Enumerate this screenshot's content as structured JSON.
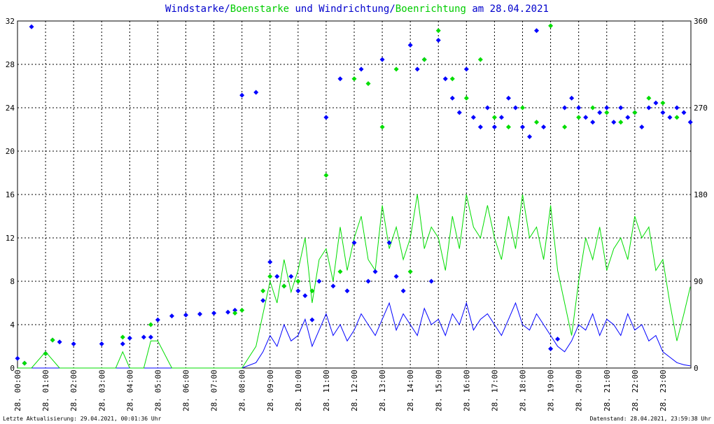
{
  "title": {
    "part1": "Windstarke/",
    "part2": "Boenstarke",
    "part3": " und Windrichtung/",
    "part4": "Boenrichtung",
    "part5": " am 28.04.2021"
  },
  "footer": {
    "left": "Letzte Aktualisierung: 29.04.2021, 00:01:36 Uhr",
    "right": "Datenstand: 28.04.2021, 23:59:38 Uhr"
  },
  "colors": {
    "wind": "#0000ff",
    "gust": "#00dd00",
    "grid": "#000000",
    "background": "#ffffff"
  },
  "chart_data": {
    "type": "line",
    "grid": true,
    "y_left": {
      "min": 0,
      "max": 32,
      "ticks": [
        "0",
        "4",
        "8",
        "12",
        "16",
        "20",
        "24",
        "28",
        "32"
      ]
    },
    "y_right": {
      "min": 0,
      "max": 360,
      "ticks": [
        "0",
        "90",
        "180",
        "270",
        "360"
      ]
    },
    "x_labels": [
      "28. 00:00",
      "28. 01:00",
      "28. 02:00",
      "28. 03:00",
      "28. 04:00",
      "28. 05:00",
      "28. 06:00",
      "28. 07:00",
      "28. 08:00",
      "28. 09:00",
      "28. 10:00",
      "28. 11:00",
      "28. 12:00",
      "28. 13:00",
      "28. 14:00",
      "28. 15:00",
      "28. 16:00",
      "28. 17:00",
      "28. 18:00",
      "28. 19:00",
      "28. 20:00",
      "28. 21:00",
      "28. 22:00",
      "28. 23:00"
    ],
    "series": [
      {
        "name": "Windstarke",
        "hours": [
          0,
          0.5,
          1,
          1.25,
          1.5,
          2,
          3,
          3.75,
          4,
          4.5,
          4.75,
          5,
          5.5,
          6,
          6.5,
          7,
          7.5,
          7.75,
          8,
          8.5,
          8.75,
          9,
          9.25,
          9.5,
          9.75,
          10,
          10.25,
          10.5,
          10.75,
          11,
          11.25,
          11.5,
          11.75,
          12,
          12.25,
          12.5,
          12.75,
          13,
          13.25,
          13.5,
          13.75,
          14,
          14.25,
          14.5,
          14.75,
          15,
          15.25,
          15.5,
          15.75,
          16,
          16.25,
          16.5,
          16.75,
          17,
          17.25,
          17.5,
          17.75,
          18,
          18.25,
          18.5,
          18.75,
          19,
          19.25,
          19.5,
          19.75,
          20,
          20.25,
          20.5,
          20.75,
          21,
          21.25,
          21.5,
          21.75,
          22,
          22.25,
          22.5,
          22.75,
          23,
          23.25,
          23.5,
          23.75,
          23.98
        ],
        "values": [
          0,
          0,
          0,
          0,
          0,
          0,
          0,
          0,
          0,
          0,
          0,
          0,
          0,
          0,
          0,
          0,
          0,
          0,
          0,
          0.5,
          1.5,
          3,
          2,
          4,
          2.5,
          3,
          4.5,
          2,
          3.5,
          5,
          3,
          4,
          2.5,
          3.5,
          5,
          4,
          3,
          4.5,
          6,
          3.5,
          5,
          4,
          3,
          5.5,
          4,
          4.5,
          3,
          5,
          4,
          6,
          3.5,
          4.5,
          5,
          4,
          3,
          4.5,
          6,
          4,
          3.5,
          5,
          4,
          3,
          2,
          1.5,
          2.5,
          4,
          3.5,
          5,
          3,
          4.5,
          4,
          3,
          5,
          3.5,
          4,
          2.5,
          3,
          1.5,
          1,
          0.5,
          0.3,
          0.2
        ]
      },
      {
        "name": "Boenstarke",
        "hours": [
          0,
          0.5,
          1,
          1.5,
          2,
          3,
          3.5,
          3.75,
          4,
          4.5,
          4.75,
          5,
          5.5,
          6,
          6.5,
          7,
          7.5,
          8,
          8.5,
          8.75,
          9,
          9.25,
          9.5,
          9.75,
          10,
          10.25,
          10.5,
          10.75,
          11,
          11.25,
          11.5,
          11.75,
          12,
          12.25,
          12.5,
          12.75,
          13,
          13.25,
          13.5,
          13.75,
          14,
          14.25,
          14.5,
          14.75,
          15,
          15.25,
          15.5,
          15.75,
          16,
          16.25,
          16.5,
          16.75,
          17,
          17.25,
          17.5,
          17.75,
          18,
          18.25,
          18.5,
          18.75,
          19,
          19.25,
          19.5,
          19.75,
          20,
          20.25,
          20.5,
          20.75,
          21,
          21.25,
          21.5,
          21.75,
          22,
          22.25,
          22.5,
          22.75,
          23,
          23.25,
          23.5,
          23.75,
          23.98
        ],
        "values": [
          0,
          0,
          1.5,
          0,
          0,
          0,
          0,
          1.5,
          0,
          0,
          2.5,
          2.5,
          0,
          0,
          0,
          0,
          0,
          0,
          2,
          5,
          8,
          6,
          10,
          7,
          9,
          12,
          6,
          10,
          11,
          8,
          13,
          9,
          12,
          14,
          10,
          9,
          15,
          11,
          13,
          10,
          12,
          16,
          11,
          13,
          12,
          9,
          14,
          11,
          16,
          13,
          12,
          15,
          12,
          10,
          14,
          11,
          16,
          12,
          13,
          10,
          15,
          9,
          6,
          3,
          8,
          12,
          10,
          13,
          9,
          11,
          12,
          10,
          14,
          12,
          13,
          9,
          10,
          6,
          2.5,
          5,
          7.5
        ]
      },
      {
        "name": "Windrichtung",
        "hours": [
          0,
          0.25,
          0.5,
          1,
          1.25,
          1.5,
          2,
          3,
          3.75,
          4,
          4.5,
          4.75,
          5,
          5.5,
          6,
          6.5,
          7,
          7.5,
          7.75,
          8,
          8.5,
          8.75,
          9,
          9.25,
          9.5,
          9.75,
          10,
          10.25,
          10.5,
          10.75,
          11,
          11.25,
          11.5,
          11.75,
          12,
          12.25,
          12.5,
          12.75,
          13,
          13.25,
          13.5,
          13.75,
          14,
          14.25,
          14.5,
          14.75,
          15,
          15.25,
          15.5,
          15.75,
          16,
          16.25,
          16.5,
          16.75,
          17,
          17.25,
          17.5,
          17.75,
          18,
          18.25,
          18.5,
          18.75,
          19,
          19.25,
          19.5,
          19.75,
          20,
          20.25,
          20.5,
          20.75,
          21,
          21.25,
          21.5,
          21.75,
          22,
          22.25,
          22.5,
          22.75,
          23,
          23.25,
          23.5,
          23.75,
          23.98
        ],
        "values": [
          10,
          5,
          354,
          15,
          29,
          27,
          25,
          25,
          25,
          31,
          32,
          32,
          50,
          54,
          55,
          56,
          57,
          58,
          60,
          283,
          286,
          70,
          110,
          95,
          85,
          95,
          80,
          75,
          50,
          90,
          260,
          85,
          300,
          80,
          130,
          310,
          90,
          100,
          320,
          130,
          95,
          80,
          335,
          310,
          320,
          90,
          340,
          300,
          280,
          265,
          310,
          260,
          250,
          270,
          250,
          260,
          280,
          270,
          250,
          240,
          350,
          250,
          20,
          30,
          270,
          280,
          270,
          260,
          255,
          265,
          270,
          255,
          270,
          260,
          265,
          250,
          270,
          275,
          265,
          260,
          270,
          265,
          255
        ]
      },
      {
        "name": "Boenrichtung",
        "hours": [
          0.25,
          1,
          1.25,
          3.75,
          4.75,
          7.75,
          8,
          8.75,
          9,
          9.5,
          10,
          10.5,
          11,
          11.5,
          12,
          12.5,
          13,
          13.5,
          14,
          14.5,
          15,
          15.5,
          16,
          16.5,
          17,
          17.5,
          18,
          18.5,
          19,
          19.5,
          20,
          20.5,
          21,
          21.5,
          22,
          22.5,
          23,
          23.5
        ],
        "values": [
          5,
          15,
          29,
          32,
          45,
          57,
          60,
          80,
          95,
          85,
          90,
          80,
          200,
          100,
          300,
          295,
          250,
          310,
          100,
          320,
          350,
          300,
          280,
          320,
          260,
          250,
          270,
          255,
          355,
          250,
          260,
          270,
          265,
          255,
          265,
          280,
          275,
          260
        ]
      }
    ]
  }
}
